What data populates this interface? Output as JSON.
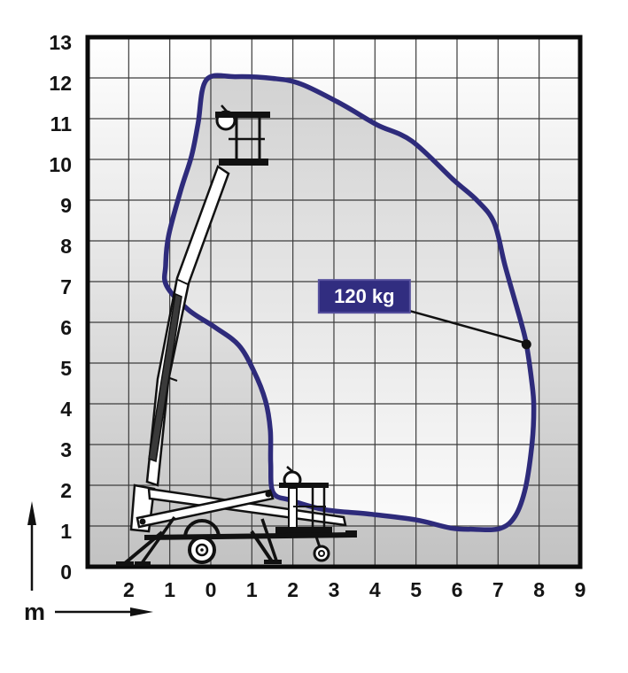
{
  "chart_data": {
    "type": "area",
    "title": "",
    "xlabel": "m",
    "ylabel": "m",
    "unit_label": "m",
    "xlim": [
      -3,
      9
    ],
    "ylim": [
      0,
      13
    ],
    "grid": true,
    "legend": "none",
    "x_axis": {
      "values": [
        -2,
        -1,
        0,
        1,
        2,
        3,
        4,
        5,
        6,
        7,
        8,
        9
      ],
      "labels": [
        "2",
        "1",
        "0",
        "1",
        "2",
        "3",
        "4",
        "5",
        "6",
        "7",
        "8",
        "9"
      ]
    },
    "y_axis": {
      "values": [
        0,
        1,
        2,
        3,
        4,
        5,
        6,
        7,
        8,
        9,
        10,
        11,
        12,
        13
      ],
      "labels": [
        "0",
        "1",
        "2",
        "3",
        "4",
        "5",
        "6",
        "7",
        "8",
        "9",
        "10",
        "11",
        "12",
        "13"
      ]
    },
    "series": [
      {
        "name": "working-envelope",
        "closed": true,
        "points": [
          [
            -0.11,
            11.95
          ],
          [
            0.6,
            12.03
          ],
          [
            1.5,
            11.99
          ],
          [
            2.2,
            11.85
          ],
          [
            3.2,
            11.35
          ],
          [
            4.05,
            10.85
          ],
          [
            4.9,
            10.45
          ],
          [
            5.91,
            9.5
          ],
          [
            6.5,
            8.98
          ],
          [
            6.91,
            8.43
          ],
          [
            7.17,
            7.39
          ],
          [
            7.56,
            6.0
          ],
          [
            7.69,
            5.46
          ],
          [
            7.82,
            4.55
          ],
          [
            7.87,
            3.95
          ],
          [
            7.83,
            3.05
          ],
          [
            7.67,
            1.95
          ],
          [
            7.42,
            1.25
          ],
          [
            7.05,
            0.94
          ],
          [
            6.4,
            0.92
          ],
          [
            5.85,
            0.95
          ],
          [
            5.0,
            1.15
          ],
          [
            3.9,
            1.29
          ],
          [
            2.78,
            1.4
          ],
          [
            1.95,
            1.63
          ],
          [
            1.52,
            1.82
          ],
          [
            1.46,
            2.55
          ],
          [
            1.45,
            3.35
          ],
          [
            1.33,
            4.08
          ],
          [
            1.05,
            4.8
          ],
          [
            0.68,
            5.44
          ],
          [
            0.1,
            5.88
          ],
          [
            -0.55,
            6.31
          ],
          [
            -1.08,
            6.9
          ],
          [
            -1.1,
            7.4
          ],
          [
            -1.03,
            8.12
          ],
          [
            -0.73,
            9.25
          ],
          [
            -0.47,
            10.08
          ],
          [
            -0.31,
            10.88
          ]
        ]
      }
    ],
    "annotations": [
      {
        "text": "120 kg",
        "anchor_point": [
          7.69,
          5.46
        ],
        "box_anchor": [
          2.63,
          7.04
        ]
      }
    ],
    "colors": {
      "envelope_stroke": "#2e2b7b",
      "annotation_bg": "#312d80",
      "annotation_border": "#57519e",
      "annotation_text": "#ffffff",
      "grid_line": "#3c3c3c",
      "plot_border": "#0a0a0a",
      "bg_gradient_top": "#ffffff",
      "bg_gradient_bottom": "#c2c2c2",
      "fill_gradient_top": "#d2d2d2",
      "fill_gradient_bottom": "#fbfbfb"
    }
  },
  "machine": {
    "description": "trailer-mounted articulated telescopic boom lift, boom raised with work basket, stowed basket and outriggers"
  }
}
